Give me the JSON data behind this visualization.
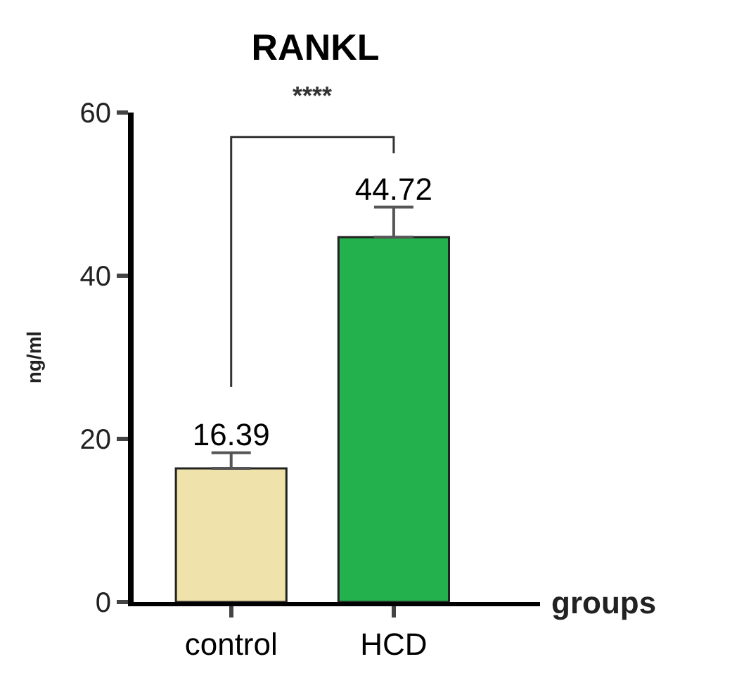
{
  "chart_data": {
    "type": "bar",
    "title": "RANKL",
    "xlabel": "groups",
    "ylabel": "ng/ml",
    "categories": [
      "control",
      "HCD"
    ],
    "values": [
      16.39,
      44.72
    ],
    "colors": [
      "#f0e2ab",
      "#22b14c"
    ],
    "errors": [
      [
        16.39,
        18.3
      ],
      [
        44.72,
        48.4
      ]
    ],
    "data_labels": true,
    "ylim": [
      0,
      60
    ],
    "yticks": [
      0,
      20,
      40,
      60
    ],
    "annotations": [
      "****"
    ]
  }
}
